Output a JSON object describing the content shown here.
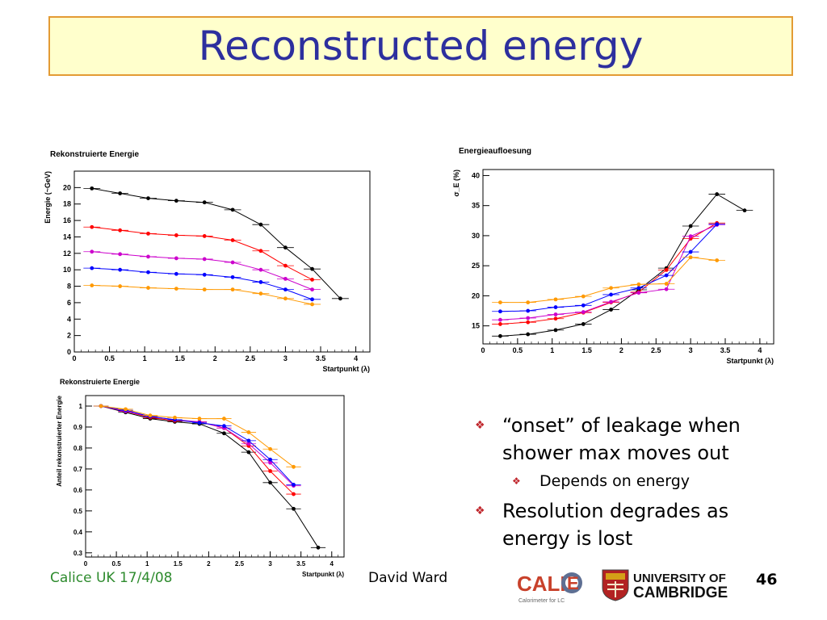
{
  "slide": {
    "title": "Reconstructed energy",
    "bullets": [
      {
        "text": "“onset” of leakage when shower max moves out",
        "level": 1
      },
      {
        "text": "Depends on energy",
        "level": 2
      },
      {
        "text": "Resolution degrades as energy is lost",
        "level": 1
      }
    ],
    "bullet_icon": "diamond-bullet-icon",
    "footer_left": "Calice UK 17/4/08",
    "footer_center": "David Ward",
    "page_number": "46",
    "logos": {
      "calice": {
        "letters_left": "CALI",
        "letter_right": "E",
        "subtitle": "Calorimeter for LC"
      },
      "cambridge": {
        "line1": "UNIVERSITY OF",
        "line2": "CAMBRIDGE"
      }
    },
    "colors": {
      "title": "#2d2f9e",
      "title_bg": "#ffffcc",
      "title_border": "#e39b34",
      "bullet": "#c0272d",
      "footer_left": "#2e8b2e"
    }
  },
  "chart_data": [
    {
      "type": "line",
      "title": "Rekonstruierte Energie",
      "xlabel": "Startpunkt (λ)",
      "ylabel": "Energie (~GeV)",
      "xlim": [
        0,
        4.2
      ],
      "ylim": [
        0,
        22
      ],
      "xticks": [
        0,
        0.5,
        1,
        1.5,
        2,
        2.5,
        3,
        3.5,
        4
      ],
      "xtick_labels": [
        "0",
        "0.5",
        "1",
        "1.5",
        "2",
        "2.5",
        "3",
        "3.5",
        "4"
      ],
      "yticks": [
        0,
        2,
        4,
        6,
        8,
        10,
        12,
        14,
        16,
        18,
        20
      ],
      "ytick_labels": [
        "0",
        "2",
        "4",
        "6",
        "8",
        "10",
        "12",
        "14",
        "16",
        "18",
        "20"
      ],
      "grid": false,
      "series": [
        {
          "color": "#000000",
          "x": [
            0.25,
            0.65,
            1.05,
            1.45,
            1.85,
            2.25,
            2.65,
            3.0,
            3.38,
            3.78
          ],
          "y": [
            19.9,
            19.3,
            18.7,
            18.4,
            18.2,
            17.3,
            15.5,
            12.7,
            10.1,
            6.5
          ]
        },
        {
          "color": "#ff0000",
          "x": [
            0.25,
            0.65,
            1.05,
            1.45,
            1.85,
            2.25,
            2.65,
            3.0,
            3.38
          ],
          "y": [
            15.2,
            14.8,
            14.4,
            14.2,
            14.1,
            13.6,
            12.3,
            10.5,
            8.8
          ]
        },
        {
          "color": "#cc00cc",
          "x": [
            0.25,
            0.65,
            1.05,
            1.45,
            1.85,
            2.25,
            2.65,
            3.0,
            3.38
          ],
          "y": [
            12.2,
            11.9,
            11.6,
            11.4,
            11.3,
            10.9,
            10.0,
            8.9,
            7.6
          ]
        },
        {
          "color": "#0000ff",
          "x": [
            0.25,
            0.65,
            1.05,
            1.45,
            1.85,
            2.25,
            2.65,
            3.0,
            3.38
          ],
          "y": [
            10.2,
            10.0,
            9.7,
            9.5,
            9.4,
            9.1,
            8.5,
            7.6,
            6.4
          ]
        },
        {
          "color": "#ff9900",
          "x": [
            0.25,
            0.65,
            1.05,
            1.45,
            1.85,
            2.25,
            2.65,
            3.0,
            3.38
          ],
          "y": [
            8.1,
            8.0,
            7.8,
            7.7,
            7.6,
            7.6,
            7.1,
            6.5,
            5.8
          ]
        }
      ]
    },
    {
      "type": "line",
      "title": "Energieaufloesung",
      "xlabel": "Startpunkt (λ)",
      "ylabel": "σ_E (%)",
      "xlim": [
        0,
        4.2
      ],
      "ylim": [
        12,
        41
      ],
      "xticks": [
        0,
        0.5,
        1,
        1.5,
        2,
        2.5,
        3,
        3.5,
        4
      ],
      "xtick_labels": [
        "0",
        "0.5",
        "1",
        "1.5",
        "2",
        "2.5",
        "3",
        "3.5",
        "4"
      ],
      "yticks": [
        15,
        20,
        25,
        30,
        35,
        40
      ],
      "ytick_labels": [
        "15",
        "20",
        "25",
        "30",
        "35",
        "40"
      ],
      "grid": false,
      "series": [
        {
          "color": "#000000",
          "x": [
            0.25,
            0.65,
            1.05,
            1.45,
            1.85,
            2.25,
            2.65,
            3.0,
            3.38,
            3.78
          ],
          "y": [
            13.3,
            13.6,
            14.3,
            15.3,
            17.7,
            21.0,
            24.6,
            31.6,
            36.9,
            34.2
          ]
        },
        {
          "color": "#ff0000",
          "x": [
            0.25,
            0.65,
            1.05,
            1.45,
            1.85,
            2.25,
            2.65,
            3.0,
            3.38
          ],
          "y": [
            15.3,
            15.6,
            16.2,
            17.2,
            18.9,
            20.6,
            24.3,
            29.5,
            32.1
          ]
        },
        {
          "color": "#cc00cc",
          "x": [
            0.25,
            0.65,
            1.05,
            1.45,
            1.85,
            2.25,
            2.65,
            3.0,
            3.38
          ],
          "y": [
            16.0,
            16.3,
            16.9,
            17.3,
            19.0,
            20.5,
            21.1,
            29.9,
            31.8
          ]
        },
        {
          "color": "#0000ff",
          "x": [
            0.25,
            0.65,
            1.05,
            1.45,
            1.85,
            2.25,
            2.65,
            3.0,
            3.38
          ],
          "y": [
            17.4,
            17.5,
            18.1,
            18.4,
            20.2,
            21.3,
            23.4,
            27.3,
            31.9
          ]
        },
        {
          "color": "#ff9900",
          "x": [
            0.25,
            0.65,
            1.05,
            1.45,
            1.85,
            2.25,
            2.65,
            3.0,
            3.38
          ],
          "y": [
            18.9,
            18.9,
            19.4,
            19.9,
            21.3,
            21.9,
            22.0,
            26.4,
            25.9
          ]
        }
      ]
    },
    {
      "type": "line",
      "title": "Rekonstruierte Energie",
      "xlabel": "Startpunkt (λ)",
      "ylabel": "Anteil rekonstruierter Energie",
      "xlim": [
        0,
        4.2
      ],
      "ylim": [
        0.28,
        1.05
      ],
      "xticks": [
        0,
        0.5,
        1,
        1.5,
        2,
        2.5,
        3,
        3.5,
        4
      ],
      "xtick_labels": [
        "0",
        "0.5",
        "1",
        "1.5",
        "2",
        "2.5",
        "3",
        "3.5",
        "4"
      ],
      "yticks": [
        0.3,
        0.4,
        0.5,
        0.6,
        0.7,
        0.8,
        0.9,
        1.0
      ],
      "ytick_labels": [
        "0.3",
        "0.4",
        "0.5",
        "0.6",
        "0.7",
        "0.8",
        "0.9",
        "1"
      ],
      "grid": false,
      "series": [
        {
          "color": "#000000",
          "x": [
            0.25,
            0.65,
            1.05,
            1.45,
            1.85,
            2.25,
            2.65,
            3.0,
            3.38,
            3.78
          ],
          "y": [
            1.0,
            0.97,
            0.94,
            0.925,
            0.915,
            0.87,
            0.78,
            0.635,
            0.51,
            0.325
          ]
        },
        {
          "color": "#ff0000",
          "x": [
            0.25,
            0.65,
            1.05,
            1.45,
            1.85,
            2.25,
            2.65,
            3.0,
            3.38
          ],
          "y": [
            1.0,
            0.975,
            0.945,
            0.93,
            0.925,
            0.895,
            0.81,
            0.69,
            0.58
          ]
        },
        {
          "color": "#cc00cc",
          "x": [
            0.25,
            0.65,
            1.05,
            1.45,
            1.85,
            2.25,
            2.65,
            3.0,
            3.38
          ],
          "y": [
            1.0,
            0.975,
            0.95,
            0.935,
            0.925,
            0.895,
            0.82,
            0.73,
            0.62
          ]
        },
        {
          "color": "#0000ff",
          "x": [
            0.25,
            0.65,
            1.05,
            1.45,
            1.85,
            2.25,
            2.65,
            3.0,
            3.38
          ],
          "y": [
            1.0,
            0.98,
            0.95,
            0.935,
            0.92,
            0.905,
            0.835,
            0.745,
            0.625
          ]
        },
        {
          "color": "#ff9900",
          "x": [
            0.25,
            0.65,
            1.05,
            1.45,
            1.85,
            2.25,
            2.65,
            3.0,
            3.38
          ],
          "y": [
            1.0,
            0.985,
            0.955,
            0.945,
            0.94,
            0.94,
            0.875,
            0.795,
            0.71
          ]
        }
      ]
    }
  ]
}
